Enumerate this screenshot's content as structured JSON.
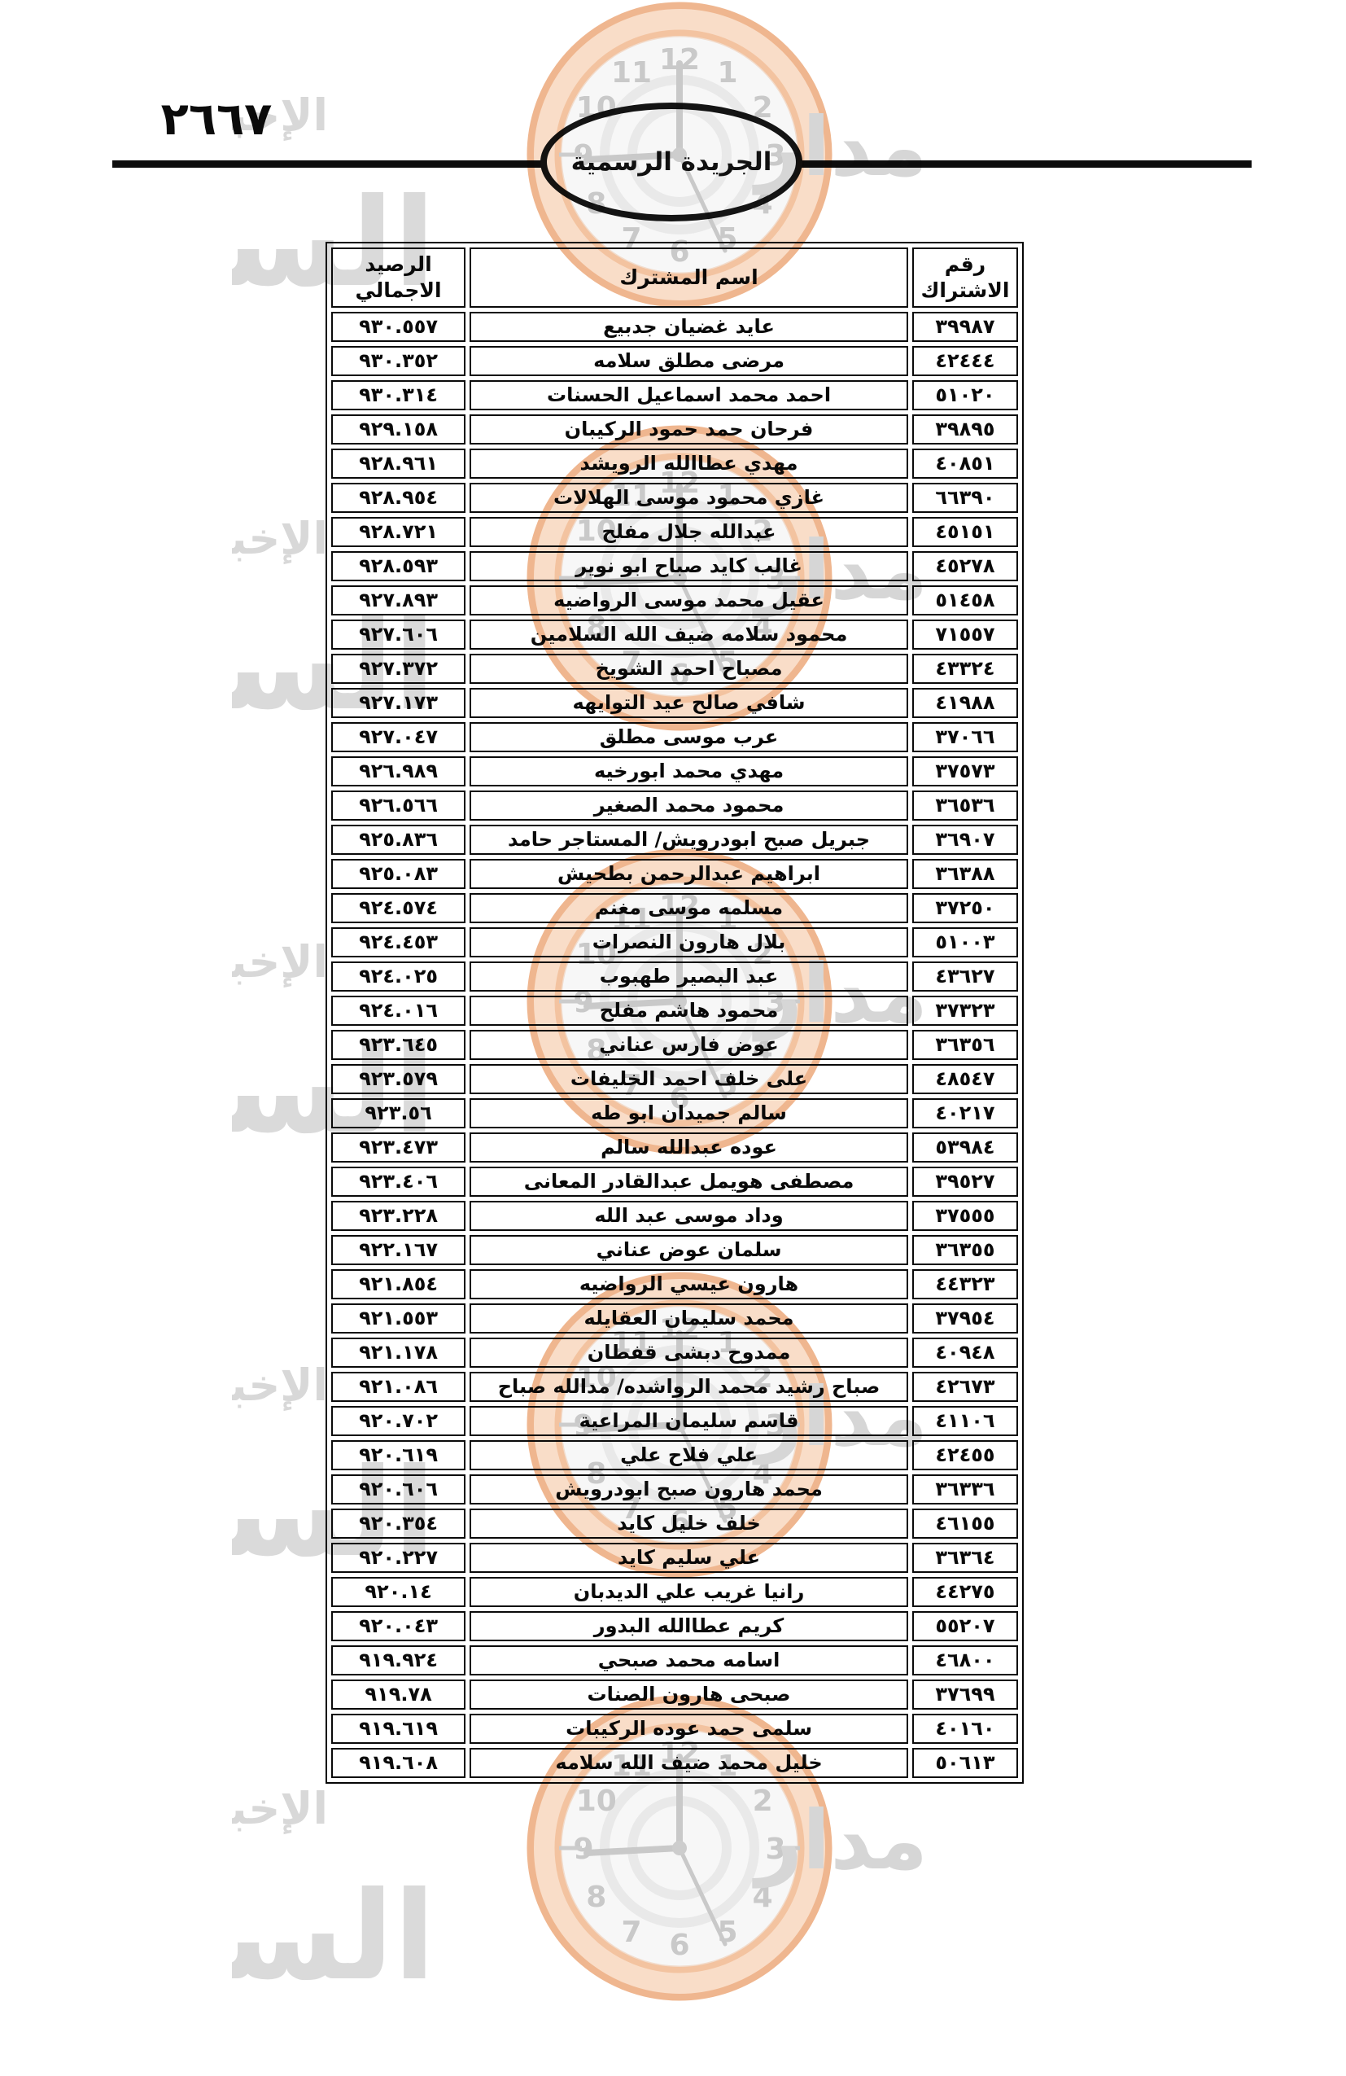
{
  "page": {
    "number": "٢٦٦٧",
    "gazette_title": "الجريدة الرسمية"
  },
  "table": {
    "headers": {
      "subscription_number": "رقم الاشتراك",
      "subscriber_name": "اسم المشترك",
      "total_balance": "الرصيد الاجمالي"
    },
    "rows": [
      {
        "number": "٣٩٩٨٧",
        "name": "عايد غضيان جدبيع",
        "balance": "٩٣٠.٥٥٧"
      },
      {
        "number": "٤٢٤٤٤",
        "name": "مرضى مطلق سلامه",
        "balance": "٩٣٠.٣٥٢"
      },
      {
        "number": "٥١٠٢٠",
        "name": "احمد محمد اسماعيل الحسنات",
        "balance": "٩٣٠.٣١٤"
      },
      {
        "number": "٣٩٨٩٥",
        "name": "فرحان حمد حمود الركيبان",
        "balance": "٩٢٩.١٥٨"
      },
      {
        "number": "٤٠٨٥١",
        "name": "مهدي عطاالله الرويشد",
        "balance": "٩٢٨.٩٦١"
      },
      {
        "number": "٦٦٣٩٠",
        "name": "غازي محمود موسى الهلالات",
        "balance": "٩٢٨.٩٥٤"
      },
      {
        "number": "٤٥١٥١",
        "name": "عبدالله جلال مفلح",
        "balance": "٩٢٨.٧٢١"
      },
      {
        "number": "٤٥٢٧٨",
        "name": "غالب كايد صباح ابو نوير",
        "balance": "٩٢٨.٥٩٣"
      },
      {
        "number": "٥١٤٥٨",
        "name": "عقيل محمد موسى الرواضيه",
        "balance": "٩٢٧.٨٩٣"
      },
      {
        "number": "٧١٥٥٧",
        "name": "محمود سلامه ضيف الله السلامين",
        "balance": "٩٢٧.٦٠٦"
      },
      {
        "number": "٤٣٣٢٤",
        "name": "مصباح احمد الشويخ",
        "balance": "٩٢٧.٣٧٢"
      },
      {
        "number": "٤١٩٨٨",
        "name": "شافي صالح عيد التوايهه",
        "balance": "٩٢٧.١٧٣"
      },
      {
        "number": "٣٧٠٦٦",
        "name": "عرب موسى مطلق",
        "balance": "٩٢٧.٠٤٧"
      },
      {
        "number": "٣٧٥٧٣",
        "name": "مهدي محمد ابورخيه",
        "balance": "٩٢٦.٩٨٩"
      },
      {
        "number": "٣٦٥٣٦",
        "name": "محمود محمد الصغير",
        "balance": "٩٢٦.٥٦٦"
      },
      {
        "number": "٣٦٩٠٧",
        "name": "جبريل صبح ابودرويش/ المستاجر حامد",
        "balance": "٩٢٥.٨٣٦"
      },
      {
        "number": "٣٦٣٨٨",
        "name": "ابراهيم عبدالرحمن بطحيش",
        "balance": "٩٢٥.٠٨٣"
      },
      {
        "number": "٣٧٢٥٠",
        "name": "مسلمه موسى مغنم",
        "balance": "٩٢٤.٥٧٤"
      },
      {
        "number": "٥١٠٠٣",
        "name": "بلال هارون النصرات",
        "balance": "٩٢٤.٤٥٣"
      },
      {
        "number": "٤٣٦٢٧",
        "name": "عبد البصير طهبوب",
        "balance": "٩٢٤.٠٢٥"
      },
      {
        "number": "٣٧٣٢٣",
        "name": "محمود هاشم مفلح",
        "balance": "٩٢٤.٠١٦"
      },
      {
        "number": "٣٦٣٥٦",
        "name": "عوض فارس عناني",
        "balance": "٩٢٣.٦٤٥"
      },
      {
        "number": "٤٨٥٤٧",
        "name": "على خلف احمد الخليفات",
        "balance": "٩٢٣.٥٧٩"
      },
      {
        "number": "٤٠٢١٧",
        "name": "سالم جميدان ابو طه",
        "balance": "٩٢٣.٥٦"
      },
      {
        "number": "٥٣٩٨٤",
        "name": "عوده عبدالله سالم",
        "balance": "٩٢٣.٤٧٣"
      },
      {
        "number": "٣٩٥٢٧",
        "name": "مصطفى هويمل عبدالقادر المعانى",
        "balance": "٩٢٣.٤٠٦"
      },
      {
        "number": "٣٧٥٥٥",
        "name": "وداد موسى عبد الله",
        "balance": "٩٢٣.٢٢٨"
      },
      {
        "number": "٣٦٣٥٥",
        "name": "سلمان عوض عناني",
        "balance": "٩٢٢.١٦٧"
      },
      {
        "number": "٤٤٣٢٣",
        "name": "هارون عيسي الرواضيه",
        "balance": "٩٢١.٨٥٤"
      },
      {
        "number": "٣٧٩٥٤",
        "name": "محمد سليمان العقايله",
        "balance": "٩٢١.٥٥٣"
      },
      {
        "number": "٤٠٩٤٨",
        "name": "ممدوح دبشى قفطان",
        "balance": "٩٢١.١٧٨"
      },
      {
        "number": "٤٢٦٧٣",
        "name": "صباح رشيد محمد الرواشده/ مدالله صباح",
        "balance": "٩٢١.٠٨٦"
      },
      {
        "number": "٤١١٠٦",
        "name": "قاسم سليمان المراعية",
        "balance": "٩٢٠.٧٠٢"
      },
      {
        "number": "٤٢٤٥٥",
        "name": "علي فلاح علي",
        "balance": "٩٢٠.٦١٩"
      },
      {
        "number": "٣٦٣٣٦",
        "name": "محمد هارون صبح ابودرويش",
        "balance": "٩٢٠.٦٠٦"
      },
      {
        "number": "٤٦١٥٥",
        "name": "خلف خليل كايد",
        "balance": "٩٢٠.٣٥٤"
      },
      {
        "number": "٣٦٣٦٤",
        "name": "علي سليم كايد",
        "balance": "٩٢٠.٢٢٧"
      },
      {
        "number": "٤٤٢٧٥",
        "name": "رانيا غريب علي الديدبان",
        "balance": "٩٢٠.١٤"
      },
      {
        "number": "٥٥٢٠٧",
        "name": "كريم عطاالله البدور",
        "balance": "٩٢٠.٠٤٣"
      },
      {
        "number": "٤٦٨٠٠",
        "name": "اسامه محمد صبحي",
        "balance": "٩١٩.٩٢٤"
      },
      {
        "number": "٣٧٦٩٩",
        "name": "صبحى هارون الصنات",
        "balance": "٩١٩.٧٨"
      },
      {
        "number": "٤٠١٦٠",
        "name": "سلمى حمد عوده الركيبات",
        "balance": "٩١٩.٦١٩"
      },
      {
        "number": "٥٠٦١٣",
        "name": "خليل محمد ضيف الله سلامه",
        "balance": "٩١٩.٦٠٨"
      }
    ]
  },
  "watermark": {
    "brand_word_right": "مدار",
    "brand_word_big": "الساعة",
    "brand_word_sub": "الإخبارية",
    "clock_numerals": [
      "12",
      "1",
      "2",
      "3",
      "4",
      "5",
      "6",
      "7",
      "8",
      "9",
      "10",
      "11"
    ]
  }
}
